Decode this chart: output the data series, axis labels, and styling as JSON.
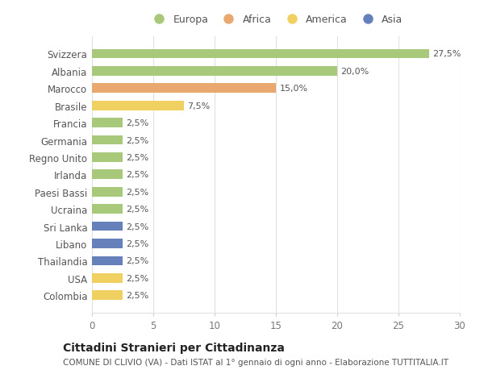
{
  "categories": [
    "Svizzera",
    "Albania",
    "Marocco",
    "Brasile",
    "Francia",
    "Germania",
    "Regno Unito",
    "Irlanda",
    "Paesi Bassi",
    "Ucraina",
    "Sri Lanka",
    "Libano",
    "Thailandia",
    "USA",
    "Colombia"
  ],
  "values": [
    27.5,
    20.0,
    15.0,
    7.5,
    2.5,
    2.5,
    2.5,
    2.5,
    2.5,
    2.5,
    2.5,
    2.5,
    2.5,
    2.5,
    2.5
  ],
  "colors": [
    "#a8c87a",
    "#a8c87a",
    "#e8a870",
    "#f0d060",
    "#a8c87a",
    "#a8c87a",
    "#a8c87a",
    "#a8c87a",
    "#a8c87a",
    "#a8c87a",
    "#6680bb",
    "#6680bb",
    "#6680bb",
    "#f0d060",
    "#f0d060"
  ],
  "labels": [
    "27,5%",
    "20,0%",
    "15,0%",
    "7,5%",
    "2,5%",
    "2,5%",
    "2,5%",
    "2,5%",
    "2,5%",
    "2,5%",
    "2,5%",
    "2,5%",
    "2,5%",
    "2,5%",
    "2,5%"
  ],
  "legend_labels": [
    "Europa",
    "Africa",
    "America",
    "Asia"
  ],
  "legend_colors": [
    "#a8c87a",
    "#e8a870",
    "#f0d060",
    "#6680bb"
  ],
  "title": "Cittadini Stranieri per Cittadinanza",
  "subtitle": "COMUNE DI CLIVIO (VA) - Dati ISTAT al 1° gennaio di ogni anno - Elaborazione TUTTITALIA.IT",
  "xlim": [
    0,
    30
  ],
  "xticks": [
    0,
    5,
    10,
    15,
    20,
    25,
    30
  ],
  "background_color": "#ffffff",
  "grid_color": "#e0e0e0",
  "bar_height": 0.55,
  "label_fontsize": 8,
  "ytick_fontsize": 8.5,
  "xtick_fontsize": 8.5,
  "legend_fontsize": 9,
  "title_fontsize": 10,
  "subtitle_fontsize": 7.5
}
